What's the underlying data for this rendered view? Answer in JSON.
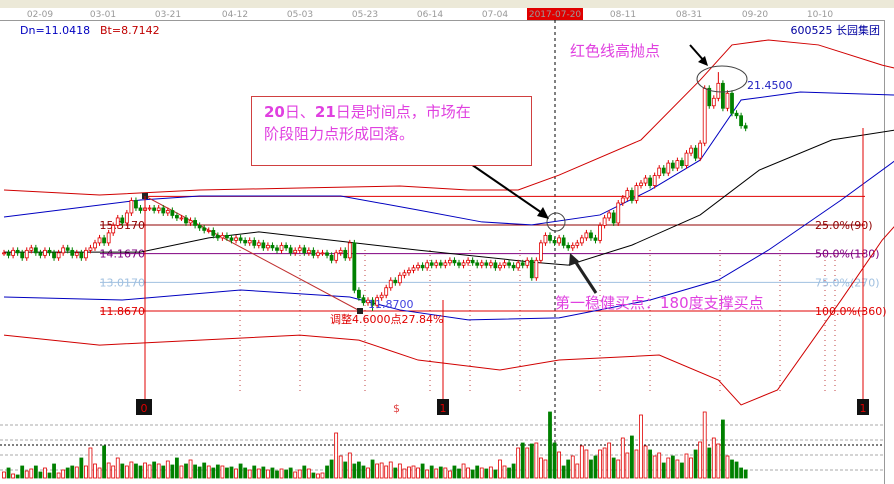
{
  "header": {
    "dates": [
      "02-09",
      "03-01",
      "03-21",
      "04-12",
      "05-03",
      "05-23",
      "06-14",
      "07-04",
      "2017-07-20",
      "08-11",
      "08-31",
      "09-20",
      "10-10"
    ],
    "dn": "Dn=11.0418",
    "bt": "Bt=8.7142",
    "stock": "600525  长园集团"
  },
  "annotations": {
    "box_line1_a": "20",
    "box_line1_b": "日、",
    "box_line1_c": "21",
    "box_line1_d": "日是时间点，市场在",
    "box_line2": "阶段阻力点形成回落。",
    "top_sell": "红色线高抛点",
    "buy_point": "第一稳健买点：180度支撑买点",
    "high_label": "21.4500",
    "low_label": "11.8700",
    "adjust": "调整4.6000点27.84%",
    "marker_0": "0",
    "marker_1a": "1",
    "marker_1b": "1",
    "marker_s": "$"
  },
  "chart_data": {
    "type": "candlestick",
    "colors": {
      "up": "#e00000",
      "down": "#008000",
      "upper_band": "#d00000",
      "mid_band": "#0000c0",
      "ma": "#000000",
      "lower_band": "#0000c0",
      "lower_red": "#d00000",
      "highlight_date": "#e00000"
    },
    "levels": [
      {
        "price": 15.317,
        "left_label": "15.3170",
        "right_label": "25.0%(90)",
        "color": "#900000"
      },
      {
        "price": 14.167,
        "left_label": "14.1670",
        "right_label": "50.0%(180)",
        "color": "#800080"
      },
      {
        "price": 13.017,
        "left_label": "13.0170",
        "right_label": "75.0%(270)",
        "color": "#a0c0e0"
      },
      {
        "price": 11.867,
        "left_label": "11.8670",
        "right_label": "100.0%(360)",
        "color": "#e00000"
      }
    ],
    "top_level": 16.467,
    "close": [
      14.2,
      14.1,
      14.3,
      14.2,
      14.0,
      14.3,
      14.4,
      14.2,
      14.1,
      14.3,
      14.2,
      14.0,
      14.2,
      14.4,
      14.3,
      14.1,
      14.2,
      14.0,
      14.3,
      14.4,
      14.6,
      14.8,
      14.6,
      15.0,
      15.3,
      15.6,
      15.4,
      15.8,
      16.3,
      16.0,
      15.9,
      16.0,
      16.0,
      15.9,
      16.0,
      15.8,
      15.9,
      15.7,
      15.6,
      15.6,
      15.4,
      15.5,
      15.3,
      15.2,
      15.1,
      15.1,
      14.9,
      14.8,
      14.9,
      14.8,
      14.7,
      14.8,
      14.7,
      14.6,
      14.7,
      14.5,
      14.6,
      14.4,
      14.5,
      14.4,
      14.3,
      14.5,
      14.4,
      14.2,
      14.3,
      14.4,
      14.2,
      14.3,
      14.1,
      14.2,
      14.2,
      14.1,
      13.9,
      14.2,
      14.3,
      14.0,
      14.6,
      12.7,
      12.4,
      12.2,
      12.3,
      12.1,
      12.4,
      12.5,
      12.8,
      13.1,
      13.0,
      13.3,
      13.4,
      13.5,
      13.6,
      13.7,
      13.6,
      13.8,
      13.7,
      13.8,
      13.7,
      13.8,
      13.9,
      13.8,
      13.7,
      13.8,
      13.9,
      13.8,
      13.7,
      13.8,
      13.7,
      13.8,
      13.6,
      13.7,
      13.8,
      13.7,
      13.6,
      13.8,
      13.7,
      13.9,
      13.2,
      13.9,
      14.6,
      14.9,
      14.7,
      14.6,
      14.8,
      14.5,
      14.4,
      14.5,
      14.6,
      14.8,
      15.0,
      14.8,
      14.7,
      15.3,
      15.6,
      15.8,
      15.4,
      16.2,
      16.4,
      16.7,
      16.3,
      16.9,
      17.0,
      17.2,
      16.9,
      17.3,
      17.6,
      17.4,
      17.8,
      17.6,
      17.9,
      17.7,
      18.2,
      18.4,
      18.0,
      18.6,
      20.8,
      20.1,
      20.4,
      21.0,
      20.0,
      20.6,
      19.8,
      19.7,
      19.3,
      19.2
    ],
    "volume": [
      6,
      10,
      4,
      3,
      12,
      7,
      9,
      12,
      6,
      10,
      5,
      14,
      5,
      8,
      10,
      12,
      11,
      20,
      12,
      30,
      14,
      10,
      32,
      15,
      12,
      20,
      14,
      12,
      16,
      14,
      12,
      15,
      13,
      16,
      14,
      12,
      17,
      13,
      20,
      12,
      14,
      18,
      13,
      11,
      15,
      12,
      10,
      13,
      12,
      10,
      11,
      9,
      14,
      10,
      8,
      12,
      9,
      11,
      8,
      10,
      7,
      9,
      8,
      10,
      6,
      8,
      12,
      9,
      5,
      4,
      5,
      12,
      18,
      45,
      22,
      16,
      25,
      14,
      16,
      12,
      10,
      18,
      14,
      15,
      12,
      16,
      10,
      14,
      9,
      11,
      12,
      10,
      14,
      8,
      12,
      9,
      11,
      10,
      7,
      12,
      9,
      14,
      10,
      8,
      12,
      10,
      9,
      11,
      8,
      18,
      12,
      10,
      14,
      30,
      35,
      30,
      34,
      35,
      20,
      18,
      66,
      35,
      26,
      12,
      18,
      22,
      14,
      32,
      28,
      18,
      22,
      28,
      30,
      35,
      20,
      18,
      40,
      25,
      42,
      28,
      63,
      32,
      28,
      22,
      25,
      15,
      20,
      22,
      18,
      15,
      24,
      20,
      28,
      36,
      66,
      30,
      40,
      34,
      58,
      22,
      18,
      16,
      10,
      8
    ],
    "high": 21.45,
    "low": 11.87,
    "lines": {
      "upper_red": [
        [
          0,
          16.72
        ],
        [
          21,
          16.52
        ],
        [
          43,
          16.72
        ],
        [
          65,
          16.8
        ],
        [
          87,
          16.88
        ],
        [
          102,
          16.72
        ],
        [
          113,
          16.72
        ],
        [
          122,
          17.32
        ],
        [
          140,
          18.73
        ],
        [
          153,
          21.13
        ],
        [
          160,
          22.54
        ],
        [
          168,
          22.74
        ],
        [
          179,
          22.54
        ],
        [
          193,
          21.73
        ],
        [
          196,
          21.6
        ]
      ],
      "upper_blue": [
        [
          0,
          15.64
        ],
        [
          30,
          16.32
        ],
        [
          43,
          16.48
        ],
        [
          74,
          16.48
        ],
        [
          91,
          15.92
        ],
        [
          105,
          15.44
        ],
        [
          116,
          15.32
        ],
        [
          131,
          15.72
        ],
        [
          142,
          16.72
        ],
        [
          153,
          17.92
        ],
        [
          162,
          20.33
        ],
        [
          175,
          20.65
        ],
        [
          196,
          20.53
        ]
      ],
      "ma": [
        [
          0,
          14.23
        ],
        [
          30,
          14.23
        ],
        [
          45,
          14.8
        ],
        [
          56,
          15.04
        ],
        [
          91,
          14.31
        ],
        [
          116,
          13.83
        ],
        [
          124,
          13.71
        ],
        [
          138,
          14.51
        ],
        [
          153,
          15.72
        ],
        [
          166,
          17.52
        ],
        [
          182,
          18.73
        ],
        [
          196,
          19.13
        ]
      ],
      "lower_blue": [
        [
          0,
          12.43
        ],
        [
          26,
          12.31
        ],
        [
          52,
          12.71
        ],
        [
          76,
          12.43
        ],
        [
          87,
          11.91
        ],
        [
          102,
          11.51
        ],
        [
          122,
          11.59
        ],
        [
          142,
          12.31
        ],
        [
          157,
          13.11
        ],
        [
          168,
          14.31
        ],
        [
          184,
          16.32
        ],
        [
          196,
          17.92
        ]
      ],
      "lower_red": [
        [
          0,
          10.9
        ],
        [
          21,
          10.5
        ],
        [
          43,
          10.7
        ],
        [
          65,
          10.9
        ],
        [
          78,
          10.7
        ],
        [
          91,
          9.9
        ],
        [
          109,
          9.5
        ],
        [
          122,
          9.9
        ],
        [
          144,
          10.1
        ],
        [
          157,
          9.1
        ],
        [
          162,
          8.1
        ],
        [
          170,
          8.7
        ],
        [
          184,
          12.31
        ],
        [
          193,
          14.71
        ],
        [
          196,
          15.32
        ]
      ]
    }
  }
}
